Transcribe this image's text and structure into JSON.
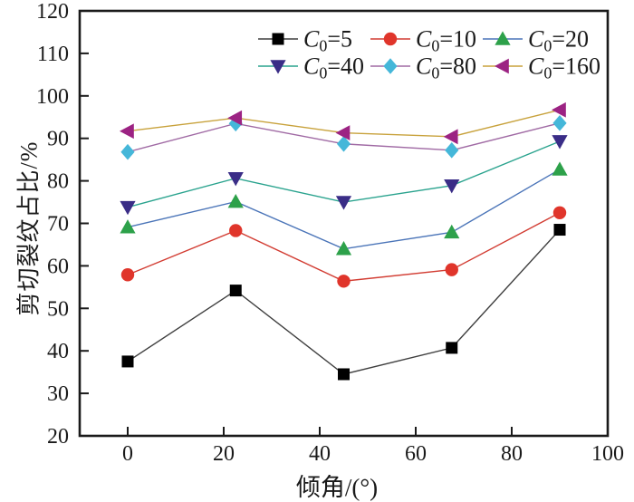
{
  "figure": {
    "background": "#ffffff",
    "frame_color": "#1a1a1a"
  },
  "chart_data": {
    "type": "line",
    "title": "",
    "xlabel": "倾角/(°)",
    "ylabel": "剪切裂纹占比/%",
    "xlim": [
      -10,
      100
    ],
    "ylim": [
      20,
      120
    ],
    "xticks": [
      0,
      20,
      40,
      60,
      80,
      100
    ],
    "yticks": [
      20,
      30,
      40,
      50,
      60,
      70,
      80,
      90,
      100,
      110,
      120
    ],
    "grid": false,
    "legend_position": "top-inside",
    "x": [
      0,
      22.5,
      45,
      67.5,
      90
    ],
    "series": [
      {
        "name": "C₀=5",
        "marker": "square",
        "marker_color": "#000000",
        "line_color": "#3f3f3f",
        "values": [
          37.5,
          54.2,
          34.5,
          40.7,
          68.5
        ]
      },
      {
        "name": "C₀=10",
        "marker": "circle",
        "marker_color": "#e0352b",
        "line_color": "#d23c32",
        "values": [
          57.9,
          68.3,
          56.4,
          59.1,
          72.5
        ]
      },
      {
        "name": "C₀=20",
        "marker": "triangle-up",
        "marker_color": "#2da14a",
        "line_color": "#4a74b8",
        "values": [
          69.1,
          75.1,
          64.0,
          67.9,
          82.7
        ]
      },
      {
        "name": "C₀=40",
        "marker": "triangle-down",
        "marker_color": "#3a2d87",
        "line_color": "#2aa38e",
        "values": [
          73.8,
          80.6,
          75.0,
          78.9,
          89.3
        ]
      },
      {
        "name": "C₀=80",
        "marker": "diamond",
        "marker_color": "#45b7d9",
        "line_color": "#a06aa4",
        "values": [
          86.8,
          93.5,
          88.7,
          87.2,
          93.6
        ]
      },
      {
        "name": "C₀=160",
        "marker": "triangle-left",
        "marker_color": "#9c2383",
        "line_color": "#c8a23c",
        "values": [
          91.7,
          94.8,
          91.3,
          90.4,
          96.7
        ]
      }
    ]
  }
}
